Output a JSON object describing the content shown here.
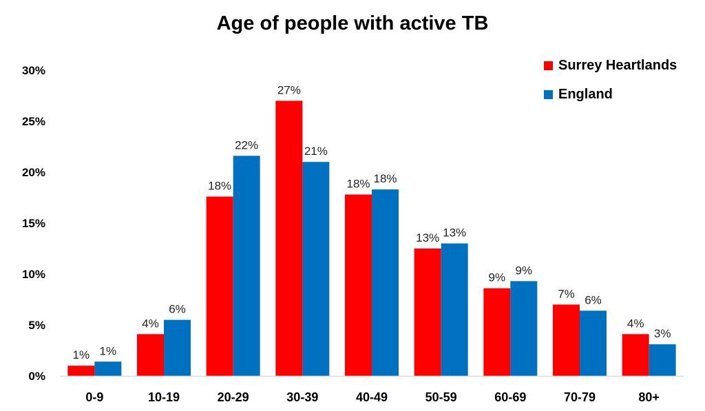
{
  "chart_data": {
    "type": "bar",
    "title": "Age of people with active TB",
    "categories": [
      "0-9",
      "10-19",
      "20-29",
      "30-39",
      "40-49",
      "50-59",
      "60-69",
      "70-79",
      "80+"
    ],
    "series": [
      {
        "name": "Surrey Heartlands",
        "color": "#ff0000",
        "values": [
          1.0,
          4.1,
          17.6,
          27.0,
          17.8,
          12.5,
          8.6,
          7.0,
          4.1
        ],
        "labels": [
          "1%",
          "4%",
          "18%",
          "27%",
          "18%",
          "13%",
          "9%",
          "7%",
          "4%"
        ]
      },
      {
        "name": "England",
        "color": "#0070c0",
        "values": [
          1.4,
          5.5,
          21.6,
          21.0,
          18.3,
          13.0,
          9.3,
          6.4,
          3.1
        ],
        "labels": [
          "1%",
          "6%",
          "22%",
          "21%",
          "18%",
          "13%",
          "9%",
          "6%",
          "3%"
        ]
      }
    ],
    "y_ticks": [
      "0%",
      "5%",
      "10%",
      "15%",
      "20%",
      "25%",
      "30%"
    ],
    "ylim": [
      0,
      30
    ],
    "xlabel": "",
    "ylabel": "",
    "grid": false,
    "legend_position": "top-right"
  }
}
